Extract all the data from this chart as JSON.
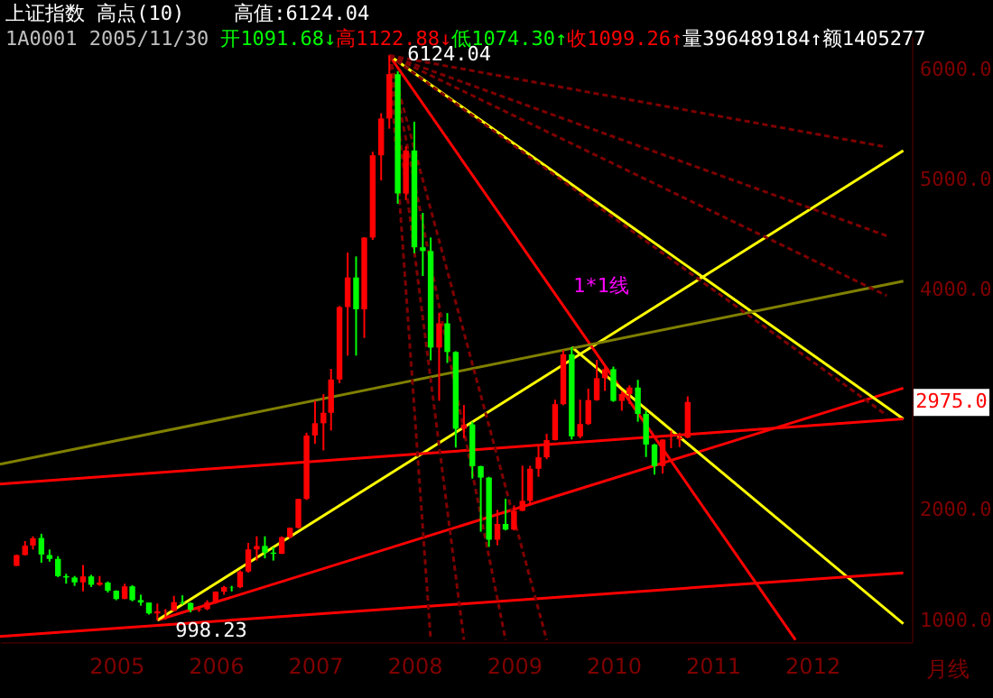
{
  "chart_data": {
    "type": "candlestick",
    "annotations": [
      "上证指数 高点(10)",
      "高值:6124.04",
      "1A0001 2005/11/30",
      "开1091.68↓",
      "高1122.88↓",
      "低1074.30↑",
      "收1099.26↑",
      "量396489184↑",
      "额1405277",
      "月线",
      {
        "text": "6124.04",
        "x": "2007-10",
        "y": 6124.04
      },
      {
        "text": "998.23",
        "x": "2005-06",
        "y": 998.23
      },
      {
        "text": "1*1线",
        "x": "2009-06",
        "y": 4026
      },
      {
        "text": "2975.0",
        "y": 2975
      }
    ],
    "x": [
      "2004-01",
      "2004-02",
      "2004-03",
      "2004-04",
      "2004-05",
      "2004-06",
      "2004-07",
      "2004-08",
      "2004-09",
      "2004-10",
      "2004-11",
      "2004-12",
      "2005-01",
      "2005-02",
      "2005-03",
      "2005-04",
      "2005-05",
      "2005-06",
      "2005-07",
      "2005-08",
      "2005-09",
      "2005-10",
      "2005-11",
      "2005-12",
      "2006-01",
      "2006-02",
      "2006-03",
      "2006-04",
      "2006-05",
      "2006-06",
      "2006-07",
      "2006-08",
      "2006-09",
      "2006-10",
      "2006-11",
      "2006-12",
      "2007-01",
      "2007-02",
      "2007-03",
      "2007-04",
      "2007-05",
      "2007-06",
      "2007-07",
      "2007-08",
      "2007-09",
      "2007-10",
      "2007-11",
      "2007-12",
      "2008-01",
      "2008-02",
      "2008-03",
      "2008-04",
      "2008-05",
      "2008-06",
      "2008-07",
      "2008-08",
      "2008-09",
      "2008-10",
      "2008-11",
      "2008-12",
      "2009-01",
      "2009-02",
      "2009-03",
      "2009-04",
      "2009-05",
      "2009-06",
      "2009-07",
      "2009-08",
      "2009-09",
      "2009-10",
      "2009-11",
      "2009-12",
      "2010-01",
      "2010-02",
      "2010-03",
      "2010-04",
      "2010-05",
      "2010-06",
      "2010-07",
      "2010-08",
      "2010-09",
      "2010-10"
    ],
    "ohlc": [
      [
        1492,
        1595,
        1491,
        1590
      ],
      [
        1590,
        1717,
        1585,
        1675
      ],
      [
        1676,
        1760,
        1640,
        1742
      ],
      [
        1745,
        1783,
        1520,
        1595
      ],
      [
        1590,
        1640,
        1530,
        1555
      ],
      [
        1555,
        1580,
        1390,
        1399
      ],
      [
        1399,
        1420,
        1330,
        1386
      ],
      [
        1386,
        1400,
        1310,
        1342
      ],
      [
        1342,
        1500,
        1260,
        1396
      ],
      [
        1396,
        1410,
        1300,
        1320
      ],
      [
        1320,
        1400,
        1310,
        1340
      ],
      [
        1340,
        1350,
        1250,
        1266
      ],
      [
        1266,
        1270,
        1180,
        1191
      ],
      [
        1191,
        1330,
        1190,
        1306
      ],
      [
        1306,
        1316,
        1170,
        1181
      ],
      [
        1181,
        1230,
        1130,
        1159
      ],
      [
        1159,
        1160,
        1050,
        1060
      ],
      [
        1060,
        1150,
        998.23,
        1080
      ],
      [
        1080,
        1100,
        1004,
        1083
      ],
      [
        1083,
        1220,
        1080,
        1162
      ],
      [
        1162,
        1224,
        1140,
        1155
      ],
      [
        1155,
        1160,
        1070,
        1092
      ],
      [
        1091.68,
        1122.88,
        1074.3,
        1099.26
      ],
      [
        1099,
        1180,
        1090,
        1161
      ],
      [
        1161,
        1260,
        1150,
        1258
      ],
      [
        1258,
        1310,
        1230,
        1299
      ],
      [
        1299,
        1310,
        1260,
        1298
      ],
      [
        1298,
        1450,
        1290,
        1440
      ],
      [
        1440,
        1700,
        1430,
        1641
      ],
      [
        1641,
        1760,
        1540,
        1672
      ],
      [
        1672,
        1760,
        1560,
        1612
      ],
      [
        1612,
        1660,
        1540,
        1601
      ],
      [
        1601,
        1760,
        1600,
        1752
      ],
      [
        1752,
        1840,
        1740,
        1837
      ],
      [
        1837,
        2100,
        1830,
        2099
      ],
      [
        2099,
        2700,
        2090,
        2675
      ],
      [
        2675,
        2990,
        2600,
        2786
      ],
      [
        2786,
        3050,
        2540,
        2881
      ],
      [
        2881,
        3280,
        2720,
        3183
      ],
      [
        3183,
        3850,
        3150,
        3841
      ],
      [
        3841,
        4335,
        3400,
        4109
      ],
      [
        4109,
        4300,
        3400,
        3821
      ],
      [
        3821,
        4475,
        3560,
        4471
      ],
      [
        4471,
        5250,
        4450,
        5218
      ],
      [
        5218,
        5600,
        4990,
        5552
      ],
      [
        5552,
        6124.04,
        5460,
        5955
      ],
      [
        5955,
        5980,
        4778,
        4871
      ],
      [
        4871,
        5300,
        4812,
        5262
      ],
      [
        5262,
        5522,
        4330,
        4383
      ],
      [
        4383,
        4696,
        4123,
        4349
      ],
      [
        4349,
        4472,
        3357,
        3473
      ],
      [
        3473,
        3786,
        2990,
        3693
      ],
      [
        3693,
        3786,
        3333,
        3433
      ],
      [
        3433,
        3440,
        2566,
        2736
      ],
      [
        2736,
        2952,
        2650,
        2775
      ],
      [
        2775,
        2800,
        2284,
        2397
      ],
      [
        2397,
        2400,
        1802,
        2293
      ],
      [
        2293,
        2300,
        1664,
        1729
      ],
      [
        1729,
        2000,
        1679,
        1872
      ],
      [
        1872,
        2100,
        1814,
        1821
      ],
      [
        1821,
        2040,
        1814,
        1991
      ],
      [
        1991,
        2400,
        1990,
        2082
      ],
      [
        2082,
        2400,
        2037,
        2373
      ],
      [
        2373,
        2580,
        2300,
        2477
      ],
      [
        2477,
        2690,
        2460,
        2633
      ],
      [
        2633,
        3000,
        2630,
        2959
      ],
      [
        2959,
        3450,
        2950,
        3412
      ],
      [
        3412,
        3478,
        2639,
        2667
      ],
      [
        2667,
        3000,
        2650,
        2779
      ],
      [
        2779,
        3100,
        2770,
        2996
      ],
      [
        2996,
        3362,
        2990,
        3195
      ],
      [
        3195,
        3300,
        3080,
        3277
      ],
      [
        3277,
        3300,
        2980,
        2989
      ],
      [
        2989,
        3070,
        2900,
        3051
      ],
      [
        3051,
        3130,
        2960,
        3110
      ],
      [
        3110,
        3180,
        2800,
        2871
      ],
      [
        2871,
        2900,
        2480,
        2593
      ],
      [
        2593,
        2600,
        2320,
        2398
      ],
      [
        2398,
        2640,
        2330,
        2638
      ],
      [
        2638,
        2720,
        2560,
        2640
      ],
      [
        2640,
        2700,
        2570,
        2656
      ],
      [
        2656,
        3030,
        2650,
        2979
      ]
    ],
    "colors": [
      "#ff0000",
      "#ff0000",
      "#ff0000",
      "#00ff00",
      "#00ff00",
      "#00ff00",
      "#00ff00",
      "#00ff00",
      "#ff0000",
      "#00ff00",
      "#ff0000",
      "#00ff00",
      "#00ff00",
      "#ff0000",
      "#00ff00",
      "#00ff00",
      "#00ff00",
      "#ff0000",
      "#ff0000",
      "#ff0000",
      "#00ff00",
      "#00ff00",
      "#ff0000",
      "#ff0000",
      "#ff0000",
      "#ff0000",
      "#00ff00",
      "#ff0000",
      "#ff0000",
      "#ff0000",
      "#00ff00",
      "#00ff00",
      "#ff0000",
      "#ff0000",
      "#ff0000",
      "#ff0000",
      "#ff0000",
      "#ff0000",
      "#ff0000",
      "#ff0000",
      "#ff0000",
      "#00ff00",
      "#ff0000",
      "#ff0000",
      "#ff0000",
      "#ff0000",
      "#00ff00",
      "#ff0000",
      "#00ff00",
      "#00ff00",
      "#00ff00",
      "#ff0000",
      "#00ff00",
      "#00ff00",
      "#ff0000",
      "#00ff00",
      "#00ff00",
      "#00ff00",
      "#ff0000",
      "#00ff00",
      "#ff0000",
      "#ff0000",
      "#ff0000",
      "#ff0000",
      "#ff0000",
      "#ff0000",
      "#ff0000",
      "#00ff00",
      "#ff0000",
      "#ff0000",
      "#ff0000",
      "#ff0000",
      "#00ff00",
      "#ff0000",
      "#ff0000",
      "#00ff00",
      "#00ff00",
      "#00ff00",
      "#ff0000",
      "#ff0000",
      "#ff0000",
      "#ff0000"
    ],
    "series": [
      {
        "type": "line",
        "color": "#ff0000",
        "x": [
          "2005-06",
          "2012-12"
        ],
        "values": [
          998.23,
          3105
        ]
      },
      {
        "type": "line",
        "color": "#ffff00",
        "x": [
          "2005-06",
          "2012-12"
        ],
        "values": [
          998.23,
          5260
        ]
      },
      {
        "type": "line",
        "color": "#ff0000",
        "x": [
          "2007-10",
          "2011-11"
        ],
        "values": [
          6124.04,
          820
        ]
      },
      {
        "type": "line",
        "color": "#ffff00",
        "x": [
          "2007-10",
          "2012-12"
        ],
        "values": [
          6124.04,
          2826
        ]
      },
      {
        "type": "line",
        "color": "#ffff00",
        "x": [
          "2009-08",
          "2012-12"
        ],
        "values": [
          3478,
          967
        ]
      },
      {
        "type": "line",
        "color": "#ff0000",
        "x": [
          "2003-11",
          "2012-12"
        ],
        "values": [
          2234,
          2826
        ]
      },
      {
        "type": "line",
        "color": "#ff0000",
        "x": [
          "2003-11",
          "2012-12"
        ],
        "values": [
          852,
          1428
        ]
      },
      {
        "type": "line",
        "color": "#808000",
        "x": [
          "2003-11",
          "2012-12"
        ],
        "values": [
          2414,
          4076
        ]
      },
      {
        "type": "line",
        "color": "#800000",
        "line_style": "dashed",
        "x": [
          "2007-10",
          "2012-10"
        ],
        "values": [
          6124.04,
          5293
        ]
      },
      {
        "type": "line",
        "color": "#800000",
        "line_style": "dashed",
        "x": [
          "2007-10",
          "2012-10"
        ],
        "values": [
          6124.04,
          4487
        ]
      },
      {
        "type": "line",
        "color": "#800000",
        "line_style": "dashed",
        "x": [
          "2007-10",
          "2012-10"
        ],
        "values": [
          6124.04,
          3944
        ]
      },
      {
        "type": "line",
        "color": "#800000",
        "line_style": "dashed",
        "x": [
          "2007-10",
          "2012-10"
        ],
        "values": [
          6124.04,
          2859
        ]
      },
      {
        "type": "line",
        "color": "#800000",
        "line_style": "dashed",
        "x": [
          "2007-10",
          "2008-03"
        ],
        "values": [
          6124.04,
          820
        ]
      },
      {
        "type": "line",
        "color": "#800000",
        "line_style": "dashed",
        "x": [
          "2007-10",
          "2008-07"
        ],
        "values": [
          6124.04,
          820
        ]
      },
      {
        "type": "line",
        "color": "#800000",
        "line_style": "dashed",
        "x": [
          "2007-10",
          "2008-12"
        ],
        "values": [
          6124.04,
          820
        ]
      },
      {
        "type": "line",
        "color": "#800000",
        "line_style": "dashed",
        "x": [
          "2007-10",
          "2009-05"
        ],
        "values": [
          6124.04,
          820
        ]
      }
    ],
    "xlim": [
      "2003-11",
      "2013-01"
    ],
    "xticks": [
      {
        "value": "2005-01",
        "label": "2005"
      },
      {
        "value": "2006-01",
        "label": "2006"
      },
      {
        "value": "2007-01",
        "label": "2007"
      },
      {
        "value": "2008-01",
        "label": "2008"
      },
      {
        "value": "2009-01",
        "label": "2009"
      },
      {
        "value": "2010-01",
        "label": "2010"
      },
      {
        "value": "2011-01",
        "label": "2011"
      },
      {
        "value": "2012-01",
        "label": "2012"
      }
    ],
    "ylim": [
      800,
      6300
    ],
    "yticks": [
      {
        "value": 1000,
        "label": "1000.0"
      },
      {
        "value": 2000,
        "label": "2000.0"
      },
      {
        "value": 4000,
        "label": "4000.0"
      },
      {
        "value": 5000,
        "label": "5000.0"
      },
      {
        "value": 6000,
        "label": "6000.0"
      }
    ]
  }
}
